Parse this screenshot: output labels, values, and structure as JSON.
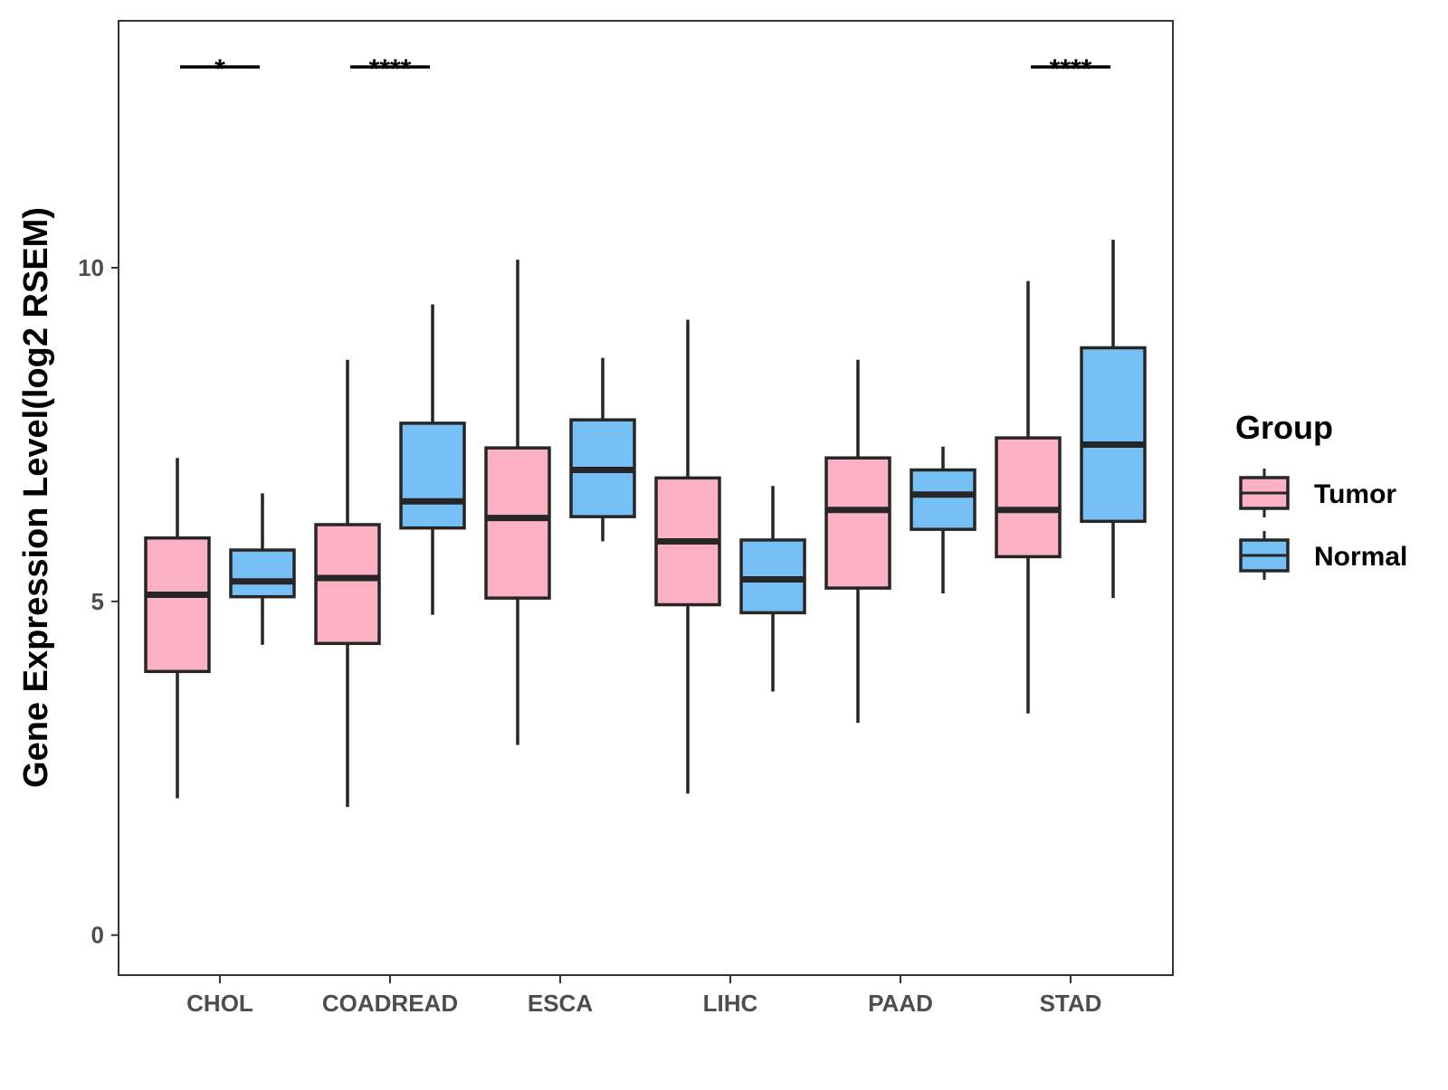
{
  "chart_data": {
    "type": "boxplot",
    "title": "",
    "xlabel": "",
    "ylabel": "Gene Expression Level(log2 RSEM)",
    "ylim": [
      -0.6,
      13.7
    ],
    "yticks": [
      0,
      5,
      10
    ],
    "categories": [
      "CHOL",
      "COADREAD",
      "ESCA",
      "LIHC",
      "PAAD",
      "STAD"
    ],
    "grid": false,
    "legend": {
      "title": "Group",
      "position": "right",
      "entries": [
        "Tumor",
        "Normal"
      ]
    },
    "series": [
      {
        "name": "Tumor",
        "color": "#fbb1c3",
        "boxes": [
          {
            "min": 2.05,
            "q1": 3.95,
            "median": 5.1,
            "q3": 5.95,
            "max": 7.15
          },
          {
            "min": 1.92,
            "q1": 4.37,
            "median": 5.35,
            "q3": 6.15,
            "max": 8.62
          },
          {
            "min": 2.85,
            "q1": 5.05,
            "median": 6.25,
            "q3": 7.3,
            "max": 10.12
          },
          {
            "min": 2.12,
            "q1": 4.95,
            "median": 5.9,
            "q3": 6.85,
            "max": 9.22
          },
          {
            "min": 3.18,
            "q1": 5.2,
            "median": 6.37,
            "q3": 7.15,
            "max": 8.62
          },
          {
            "min": 3.32,
            "q1": 5.67,
            "median": 6.37,
            "q3": 7.45,
            "max": 9.8
          }
        ]
      },
      {
        "name": "Normal",
        "color": "#76c0f6",
        "boxes": [
          {
            "min": 4.35,
            "q1": 5.07,
            "median": 5.3,
            "q3": 5.77,
            "max": 6.62
          },
          {
            "min": 4.8,
            "q1": 6.1,
            "median": 6.5,
            "q3": 7.67,
            "max": 9.45
          },
          {
            "min": 5.9,
            "q1": 6.27,
            "median": 6.97,
            "q3": 7.72,
            "max": 8.65
          },
          {
            "min": 3.65,
            "q1": 4.83,
            "median": 5.33,
            "q3": 5.92,
            "max": 6.73
          },
          {
            "min": 5.12,
            "q1": 6.08,
            "median": 6.6,
            "q3": 6.97,
            "max": 7.32
          },
          {
            "min": 5.05,
            "q1": 6.2,
            "median": 7.35,
            "q3": 8.8,
            "max": 10.42
          }
        ]
      }
    ],
    "significance": [
      {
        "category": "CHOL",
        "label": "*"
      },
      {
        "category": "COADREAD",
        "label": "****"
      },
      {
        "category": "STAD",
        "label": "****"
      }
    ]
  }
}
